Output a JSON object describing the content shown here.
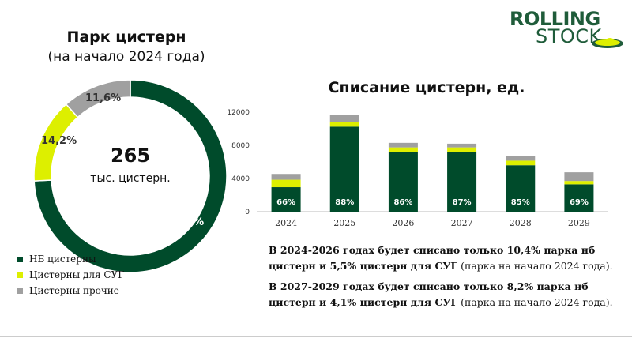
{
  "logo": {
    "line1": "ROLLING",
    "line2": "STOCK"
  },
  "chart_data": [
    {
      "type": "pie",
      "title": "Парк цистерн",
      "subtitle": "(на начало 2024 года)",
      "center_value": "265",
      "center_unit": "тыс. цистерн.",
      "slices": [
        {
          "name": "НБ цистерны",
          "value": 74.2,
          "label": "74,2%",
          "color": "#004b2b"
        },
        {
          "name": "Цистерны для СУГ",
          "value": 14.2,
          "label": "14,2%",
          "color": "#ddef00"
        },
        {
          "name": "Цистерны прочие",
          "value": 11.6,
          "label": "11,6%",
          "color": "#a0a0a0"
        }
      ],
      "legend_position": "bottom-left"
    },
    {
      "type": "bar",
      "stacked": true,
      "title": "Списание цистерн, ед.",
      "categories": [
        "2024",
        "2025",
        "2026",
        "2027",
        "2028",
        "2029"
      ],
      "ylim": [
        0,
        12000
      ],
      "yticks": [
        "0",
        "4000",
        "8000",
        "12000"
      ],
      "series": [
        {
          "values": [
            2950,
            10250,
            7150,
            7150,
            5600,
            3300
          ],
          "color": "#004b2b"
        },
        {
          "values": [
            900,
            550,
            600,
            600,
            550,
            400
          ],
          "color": "#ddef00"
        },
        {
          "values": [
            700,
            850,
            550,
            450,
            550,
            1050
          ],
          "color": "#a0a0a0"
        }
      ],
      "data_labels": [
        "66%",
        "88%",
        "86%",
        "87%",
        "85%",
        "69%"
      ],
      "grid": false
    }
  ],
  "notes": [
    {
      "bold": "В 2024-2026 годах будет списано только 10,4% парка нб цистерн и 5,5% цистерн для СУГ",
      "normal": " (парка на начало 2024 года)."
    },
    {
      "bold": "В 2027-2029 годах будет списано только 8,2% парка нб цистерн и 4,1% цистерн для СУГ",
      "normal": " (парка на начало 2024 года)."
    }
  ],
  "colors": {
    "dark_green": "#004b2b",
    "lime": "#ddef00",
    "gray": "#a0a0a0",
    "brand": "#1f5c3a"
  }
}
